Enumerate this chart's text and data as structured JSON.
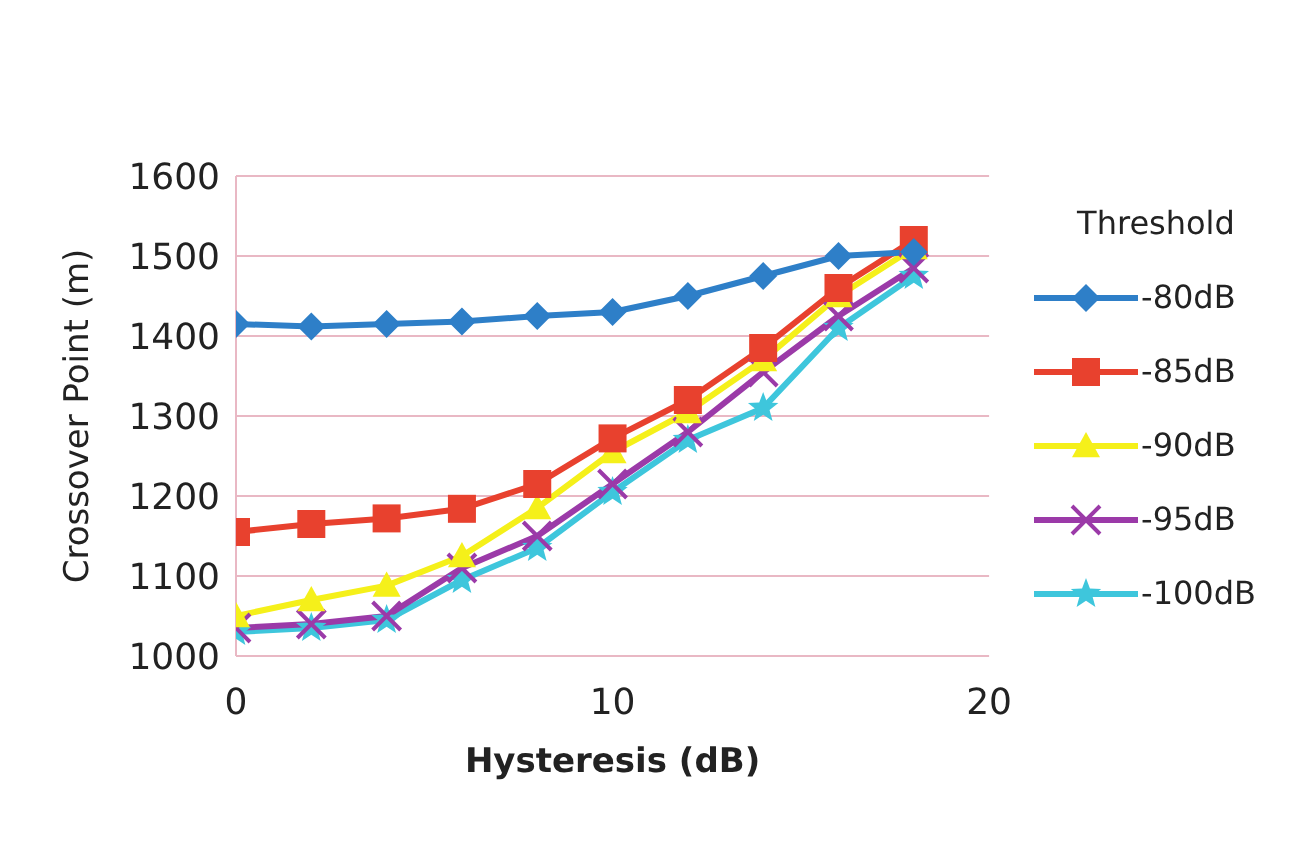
{
  "chart_data": {
    "type": "line",
    "xlabel": "Hysteresis (dB)",
    "ylabel": "Crossover Point (m)",
    "legend_title": "Threshold",
    "legend": "right",
    "grid": "y",
    "x": [
      0,
      2,
      4,
      6,
      8,
      10,
      12,
      14,
      16,
      18
    ],
    "xlim": [
      0,
      20
    ],
    "xticks": [
      0,
      10,
      20
    ],
    "ylim": [
      1000,
      1600
    ],
    "yticks": [
      1000,
      1100,
      1200,
      1300,
      1400,
      1500,
      1600
    ],
    "series": [
      {
        "name": "-80dB",
        "color": "#2e7fc8",
        "marker": "diamond",
        "values": [
          1415,
          1412,
          1415,
          1418,
          1425,
          1430,
          1450,
          1475,
          1500,
          1505
        ]
      },
      {
        "name": "-85dB",
        "color": "#e8412e",
        "marker": "square",
        "values": [
          1155,
          1165,
          1172,
          1184,
          1215,
          1272,
          1320,
          1385,
          1460,
          1520
        ]
      },
      {
        "name": "-90dB",
        "color": "#f5f01a",
        "marker": "triangle",
        "values": [
          1050,
          1070,
          1088,
          1125,
          1185,
          1255,
          1305,
          1370,
          1450,
          1510
        ]
      },
      {
        "name": "-95dB",
        "color": "#9b3aa8",
        "marker": "cross",
        "values": [
          1035,
          1040,
          1050,
          1110,
          1150,
          1215,
          1280,
          1355,
          1425,
          1485
        ]
      },
      {
        "name": "-100dB",
        "color": "#3ec6dc",
        "marker": "star",
        "values": [
          1030,
          1035,
          1045,
          1095,
          1135,
          1205,
          1270,
          1310,
          1410,
          1475
        ]
      }
    ]
  }
}
